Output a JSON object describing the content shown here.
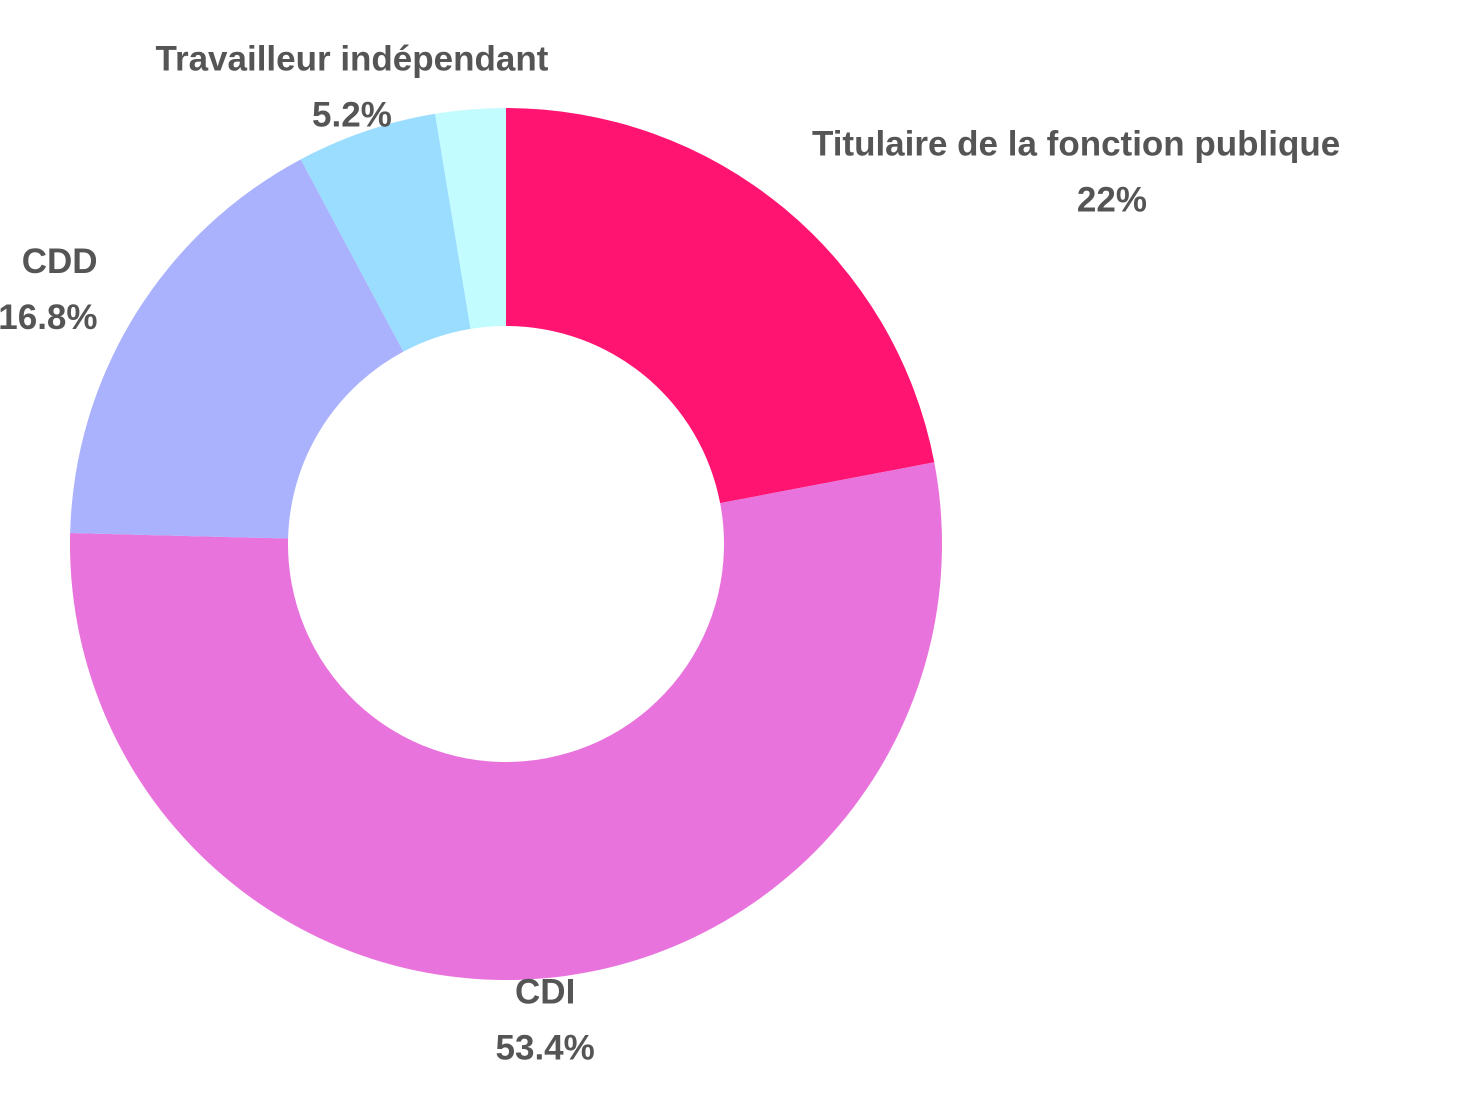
{
  "chart_data": {
    "type": "donut",
    "categories": [
      "Titulaire de la fonction publique",
      "CDI",
      "CDD",
      "Travailleur indépendant",
      null
    ],
    "values": [
      22,
      53.4,
      16.8,
      5.2,
      2.6
    ],
    "value_labels": [
      "22%",
      "53.4%",
      "16.8%",
      "5.2%",
      null
    ],
    "colors": [
      "#ff1472",
      "#e973dc",
      "#aab1fd",
      "#9addff",
      "#c3fcff"
    ]
  }
}
